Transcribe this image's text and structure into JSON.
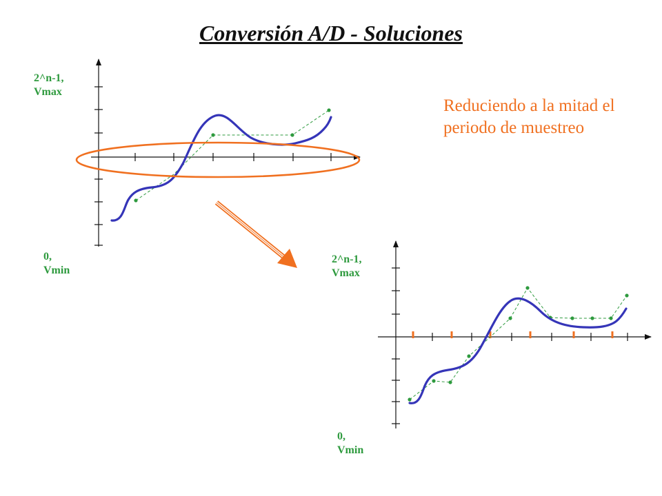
{
  "slide": {
    "title": "Conversión A/D - Soluciones",
    "note": "Reduciendo a la mitad el periodo de muestreo"
  },
  "top_plot": {
    "label_max": {
      "line1": "2^n-1,",
      "line2": "Vmax"
    },
    "label_min": {
      "line1": "0,",
      "line2": "Vmin"
    }
  },
  "bottom_plot": {
    "label_max": {
      "line1": "2^n-1,",
      "line2": "Vmax"
    },
    "label_min": {
      "line1": "0,",
      "line2": "Vmin"
    }
  },
  "colors": {
    "signal": "#3535b8",
    "samples": "#2e9a3e",
    "highlight": "#f07020",
    "axis": "#111111"
  }
}
